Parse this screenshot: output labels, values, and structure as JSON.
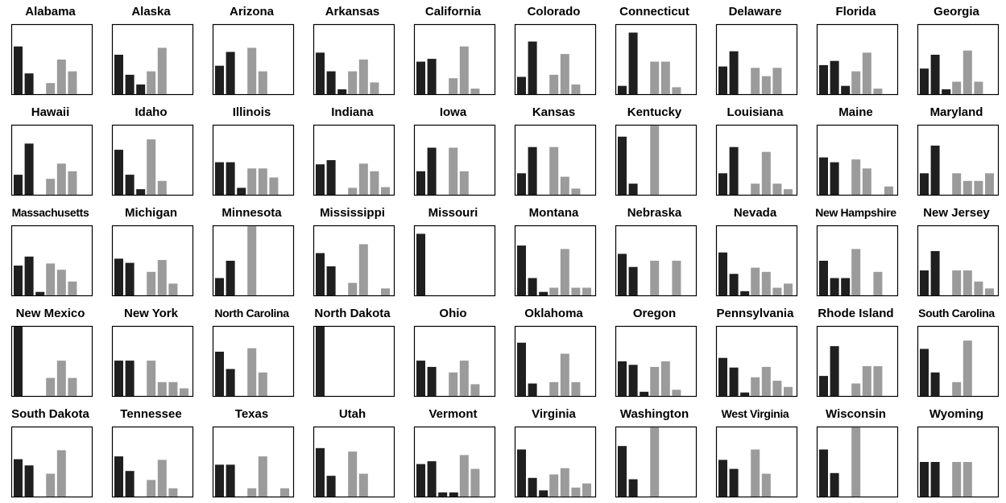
{
  "colors": {
    "series_a": "#1f1f1f",
    "series_b": "#9b9b9b",
    "frame": "#000000",
    "background": "#ffffff"
  },
  "chart_data": [
    {
      "type": "bar",
      "title": "Alabama",
      "series": [
        {
          "values": [
            0.69,
            0.3,
            0
          ]
        },
        {
          "values": [
            0.16,
            0.5,
            0.33
          ]
        }
      ]
    },
    {
      "type": "bar",
      "title": "Alaska",
      "series": [
        {
          "values": [
            0.57,
            0.28,
            0.14
          ]
        },
        {
          "values": [
            0.33,
            0.67,
            0
          ]
        }
      ]
    },
    {
      "type": "bar",
      "title": "Arizona",
      "series": [
        {
          "values": [
            0.41,
            0.61,
            0
          ]
        },
        {
          "values": [
            0.67,
            0.33,
            0
          ]
        }
      ]
    },
    {
      "type": "bar",
      "title": "Arkansas",
      "series": [
        {
          "values": [
            0.6,
            0.33,
            0.07
          ]
        },
        {
          "values": [
            0.33,
            0.5,
            0.17
          ]
        }
      ]
    },
    {
      "type": "bar",
      "title": "California",
      "series": [
        {
          "values": [
            0.47,
            0.51,
            0
          ]
        },
        {
          "values": [
            0.23,
            0.69,
            0.08
          ]
        }
      ]
    },
    {
      "type": "bar",
      "title": "Colorado",
      "series": [
        {
          "values": [
            0.25,
            0.76,
            0
          ]
        },
        {
          "values": [
            0.28,
            0.58,
            0.14
          ]
        }
      ]
    },
    {
      "type": "bar",
      "title": "Connecticut",
      "series": [
        {
          "values": [
            0.12,
            0.89,
            0
          ]
        },
        {
          "values": [
            0.47,
            0.47,
            0.1
          ]
        }
      ]
    },
    {
      "type": "bar",
      "title": "Delaware",
      "series": [
        {
          "values": [
            0.4,
            0.62,
            0
          ]
        },
        {
          "values": [
            0.38,
            0.26,
            0.38
          ]
        }
      ]
    },
    {
      "type": "bar",
      "title": "Florida",
      "series": [
        {
          "values": [
            0.42,
            0.48,
            0.12
          ]
        },
        {
          "values": [
            0.33,
            0.6,
            0.08
          ]
        }
      ]
    },
    {
      "type": "bar",
      "title": "Georgia",
      "series": [
        {
          "values": [
            0.37,
            0.57,
            0.07
          ]
        },
        {
          "values": [
            0.18,
            0.63,
            0.18
          ]
        }
      ]
    },
    {
      "type": "bar",
      "title": "Hawaii",
      "series": [
        {
          "values": [
            0.29,
            0.74,
            0
          ]
        },
        {
          "values": [
            0.23,
            0.45,
            0.34
          ]
        }
      ]
    },
    {
      "type": "bar",
      "title": "Idaho",
      "series": [
        {
          "values": [
            0.65,
            0.29,
            0.08
          ]
        },
        {
          "values": [
            0.8,
            0.2,
            0
          ]
        }
      ]
    },
    {
      "type": "bar",
      "title": "Illinois",
      "series": [
        {
          "values": [
            0.47,
            0.47,
            0.1
          ]
        },
        {
          "values": [
            0.38,
            0.38,
            0.25
          ]
        }
      ]
    },
    {
      "type": "bar",
      "title": "Indiana",
      "series": [
        {
          "values": [
            0.44,
            0.5,
            0
          ]
        },
        {
          "values": [
            0.1,
            0.45,
            0.34,
            0.11
          ]
        }
      ]
    },
    {
      "type": "bar",
      "title": "Iowa",
      "series": [
        {
          "values": [
            0.34,
            0.68,
            0
          ]
        },
        {
          "values": [
            0.68,
            0.34,
            0
          ]
        }
      ]
    },
    {
      "type": "bar",
      "title": "Kansas",
      "series": [
        {
          "values": [
            0.31,
            0.69,
            0
          ]
        },
        {
          "values": [
            0.69,
            0.26,
            0.09
          ]
        }
      ]
    },
    {
      "type": "bar",
      "title": "Kentucky",
      "series": [
        {
          "values": [
            0.84,
            0.16,
            0
          ]
        },
        {
          "values": [
            1.0,
            0,
            0
          ]
        }
      ]
    },
    {
      "type": "bar",
      "title": "Louisiana",
      "series": [
        {
          "values": [
            0.31,
            0.69,
            0
          ]
        },
        {
          "values": [
            0.16,
            0.62,
            0.16,
            0.08
          ]
        }
      ]
    },
    {
      "type": "bar",
      "title": "Maine",
      "series": [
        {
          "values": [
            0.54,
            0.47,
            0
          ]
        },
        {
          "values": [
            0.51,
            0.38,
            0,
            0.12
          ]
        }
      ]
    },
    {
      "type": "bar",
      "title": "Maryland",
      "series": [
        {
          "values": [
            0.31,
            0.71,
            0
          ]
        },
        {
          "values": [
            0.31,
            0.2,
            0.2,
            0.31
          ]
        }
      ]
    },
    {
      "type": "bar",
      "title": "Massachusetts",
      "series": [
        {
          "values": [
            0.43,
            0.56,
            0.05
          ]
        },
        {
          "values": [
            0.46,
            0.37,
            0.2
          ]
        }
      ]
    },
    {
      "type": "bar",
      "title": "Michigan",
      "series": [
        {
          "values": [
            0.53,
            0.47,
            0
          ]
        },
        {
          "values": [
            0.34,
            0.51,
            0.17
          ]
        }
      ]
    },
    {
      "type": "bar",
      "title": "Minnesota",
      "series": [
        {
          "values": [
            0.25,
            0.5,
            0
          ]
        },
        {
          "values": [
            1.0,
            0,
            0
          ]
        }
      ]
    },
    {
      "type": "bar",
      "title": "Mississippi",
      "series": [
        {
          "values": [
            0.61,
            0.42,
            0
          ]
        },
        {
          "values": [
            0.18,
            0.74,
            0,
            0.1
          ]
        }
      ]
    },
    {
      "type": "bar",
      "title": "Missouri",
      "series": [
        {
          "values": [
            0.89,
            0,
            0
          ]
        },
        {
          "values": [
            0,
            0,
            0
          ]
        }
      ]
    },
    {
      "type": "bar",
      "title": "Montana",
      "series": [
        {
          "values": [
            0.72,
            0.25,
            0.05
          ]
        },
        {
          "values": [
            0.11,
            0.67,
            0.11,
            0.11
          ]
        }
      ]
    },
    {
      "type": "bar",
      "title": "Nebraska",
      "series": [
        {
          "values": [
            0.6,
            0.41,
            0
          ]
        },
        {
          "values": [
            0.5,
            0,
            0.5
          ]
        }
      ]
    },
    {
      "type": "bar",
      "title": "Nevada",
      "series": [
        {
          "values": [
            0.62,
            0.31,
            0.06
          ]
        },
        {
          "values": [
            0.4,
            0.34,
            0.11,
            0.17
          ]
        }
      ]
    },
    {
      "type": "bar",
      "title": "New Hampshire",
      "series": [
        {
          "values": [
            0.5,
            0.25,
            0.25
          ]
        },
        {
          "values": [
            0.67,
            0,
            0.34
          ]
        }
      ]
    },
    {
      "type": "bar",
      "title": "New Jersey",
      "series": [
        {
          "values": [
            0.36,
            0.64,
            0
          ]
        },
        {
          "values": [
            0.36,
            0.36,
            0.2,
            0.1
          ]
        }
      ]
    },
    {
      "type": "bar",
      "title": "New Mexico",
      "series": [
        {
          "values": [
            1.0,
            0,
            0
          ]
        },
        {
          "values": [
            0.26,
            0.51,
            0.26
          ]
        }
      ]
    },
    {
      "type": "bar",
      "title": "New York",
      "series": [
        {
          "values": [
            0.51,
            0.51,
            0
          ]
        },
        {
          "values": [
            0.51,
            0.2,
            0.2,
            0.11
          ]
        }
      ]
    },
    {
      "type": "bar",
      "title": "North Carolina",
      "series": [
        {
          "values": [
            0.64,
            0.39,
            0
          ]
        },
        {
          "values": [
            0.69,
            0.34,
            0
          ]
        }
      ]
    },
    {
      "type": "bar",
      "title": "North Dakota",
      "series": [
        {
          "values": [
            1.0,
            0,
            0
          ]
        },
        {
          "values": [
            0,
            0,
            0
          ]
        }
      ]
    },
    {
      "type": "bar",
      "title": "Ohio",
      "series": [
        {
          "values": [
            0.51,
            0.42,
            0
          ]
        },
        {
          "values": [
            0.34,
            0.51,
            0.17
          ]
        }
      ]
    },
    {
      "type": "bar",
      "title": "Oklahoma",
      "series": [
        {
          "values": [
            0.77,
            0.18,
            0
          ]
        },
        {
          "values": [
            0.2,
            0.61,
            0.2
          ]
        }
      ]
    },
    {
      "type": "bar",
      "title": "Oregon",
      "series": [
        {
          "values": [
            0.5,
            0.45,
            0.06
          ]
        },
        {
          "values": [
            0.42,
            0.5,
            0.09
          ]
        }
      ]
    },
    {
      "type": "bar",
      "title": "Pennsylvania",
      "series": [
        {
          "values": [
            0.55,
            0.41,
            0.05
          ]
        },
        {
          "values": [
            0.27,
            0.42,
            0.22,
            0.13
          ]
        }
      ]
    },
    {
      "type": "bar",
      "title": "Rhode Island",
      "series": [
        {
          "values": [
            0.29,
            0.72,
            0
          ]
        },
        {
          "values": [
            0.18,
            0.43,
            0.43
          ]
        }
      ]
    },
    {
      "type": "bar",
      "title": "South Carolina",
      "series": [
        {
          "values": [
            0.68,
            0.34,
            0
          ]
        },
        {
          "values": [
            0.2,
            0.8,
            0
          ]
        }
      ]
    },
    {
      "type": "bar",
      "title": "South Dakota",
      "series": [
        {
          "values": [
            0.54,
            0.45,
            0
          ]
        },
        {
          "values": [
            0.33,
            0.67,
            0
          ]
        }
      ]
    },
    {
      "type": "bar",
      "title": "Tennessee",
      "series": [
        {
          "values": [
            0.58,
            0.37,
            0
          ]
        },
        {
          "values": [
            0.24,
            0.53,
            0.12
          ]
        }
      ]
    },
    {
      "type": "bar",
      "title": "Texas",
      "series": [
        {
          "values": [
            0.46,
            0.46,
            0
          ]
        },
        {
          "values": [
            0.12,
            0.58,
            0,
            0.12
          ]
        }
      ]
    },
    {
      "type": "bar",
      "title": "Utah",
      "series": [
        {
          "values": [
            0.7,
            0.3,
            0
          ]
        },
        {
          "values": [
            0.65,
            0.33,
            0
          ]
        }
      ]
    },
    {
      "type": "bar",
      "title": "Vermont",
      "series": [
        {
          "values": [
            0.47,
            0.51,
            0.06,
            0.06
          ]
        },
        {
          "values": [
            0.6,
            0.4,
            0
          ]
        }
      ]
    },
    {
      "type": "bar",
      "title": "Virginia",
      "series": [
        {
          "values": [
            0.68,
            0.27,
            0.09
          ]
        },
        {
          "values": [
            0.32,
            0.41,
            0.13,
            0.19
          ]
        }
      ]
    },
    {
      "type": "bar",
      "title": "Washington",
      "series": [
        {
          "values": [
            0.73,
            0.25,
            0
          ]
        },
        {
          "values": [
            1.0,
            0,
            0
          ]
        }
      ]
    },
    {
      "type": "bar",
      "title": "West Virginia",
      "series": [
        {
          "values": [
            0.53,
            0.4,
            0
          ]
        },
        {
          "values": [
            0.68,
            0.33,
            0
          ]
        }
      ]
    },
    {
      "type": "bar",
      "title": "Wisconsin",
      "series": [
        {
          "values": [
            0.68,
            0.34,
            0
          ]
        },
        {
          "values": [
            1.0,
            0,
            0
          ]
        }
      ]
    },
    {
      "type": "bar",
      "title": "Wyoming",
      "series": [
        {
          "values": [
            0.5,
            0.5,
            0
          ]
        },
        {
          "values": [
            0.5,
            0.5,
            0
          ]
        }
      ]
    }
  ]
}
